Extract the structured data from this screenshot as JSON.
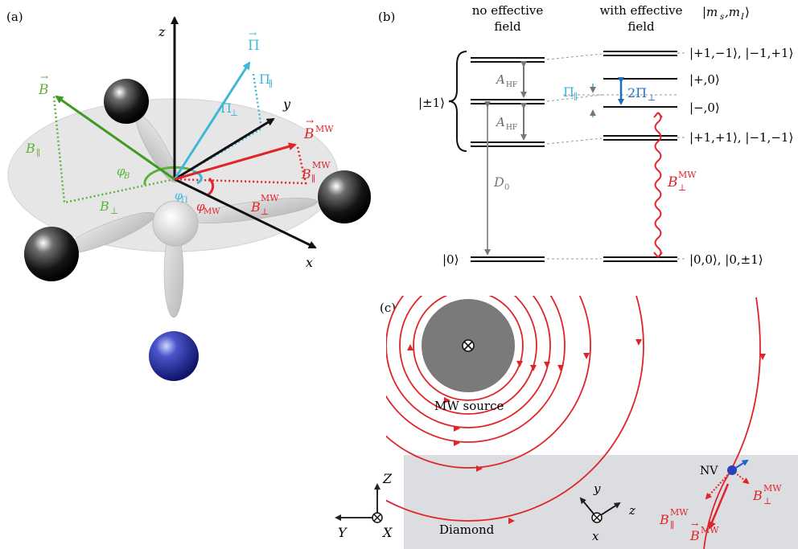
{
  "panels": {
    "a": {
      "tag": "(a)",
      "axes": {
        "z": "z",
        "y": "y",
        "x": "x"
      },
      "vectors": {
        "B": "B",
        "Pi": "Π",
        "BMW": "B",
        "MW_sup": "MW"
      },
      "components": {
        "B_par": "B",
        "B_perp": "B",
        "par_sub": "∥",
        "perp_sub": "⊥",
        "Pi_par": "Π",
        "Pi_perp": "Π",
        "BMW_par": "B",
        "BMW_perp": "B"
      },
      "angles": {
        "phiB": "φ",
        "phiB_sub": "B",
        "phiPi": "φ",
        "phiPi_sub": "Π",
        "phiMW": "φ",
        "phiMW_sub": "MW"
      }
    },
    "b": {
      "tag": "(b)",
      "col1_header": [
        "no effective",
        "field"
      ],
      "col2_header": [
        "with effective",
        "field"
      ],
      "col3_header": "|m",
      "col3_sub_s": "s",
      "col3_sub_I": "I",
      "left_plus_minus": "|±1⟩",
      "left_zero": "|0⟩",
      "AHF": "A",
      "AHF_sub": "HF",
      "D0": "D",
      "D0_sub": "0",
      "Pi_par": "Π",
      "two_Pi_perp": "2Π",
      "BperpMW": "B",
      "states": {
        "s1": "|+1,−1⟩, |−1,+1⟩",
        "s2": "|+,0⟩",
        "s3": "|−,0⟩",
        "s4": "|+1,+1⟩, |−1,−1⟩",
        "s5": "|0,0⟩, |0,±1⟩"
      }
    },
    "c": {
      "tag": "(c)",
      "source_label": "MW source",
      "diamond_label": "Diamond",
      "nv_label": "NV",
      "frame_big": {
        "Z": "Z",
        "Y": "Y",
        "X": "X"
      },
      "frame_small": {
        "y": "y",
        "z": "z",
        "x": "x"
      },
      "BMW_par": "B",
      "BMW_perp": "B",
      "BMW": "B"
    }
  },
  "colors": {
    "green": "#5db33a",
    "cyan": "#3fb7d6",
    "red": "#e0242a",
    "blue_dark": "#1f6fc1",
    "grey_line": "#888888",
    "diamond_bg": "#dcdde0",
    "source": "#7a7a7a"
  }
}
